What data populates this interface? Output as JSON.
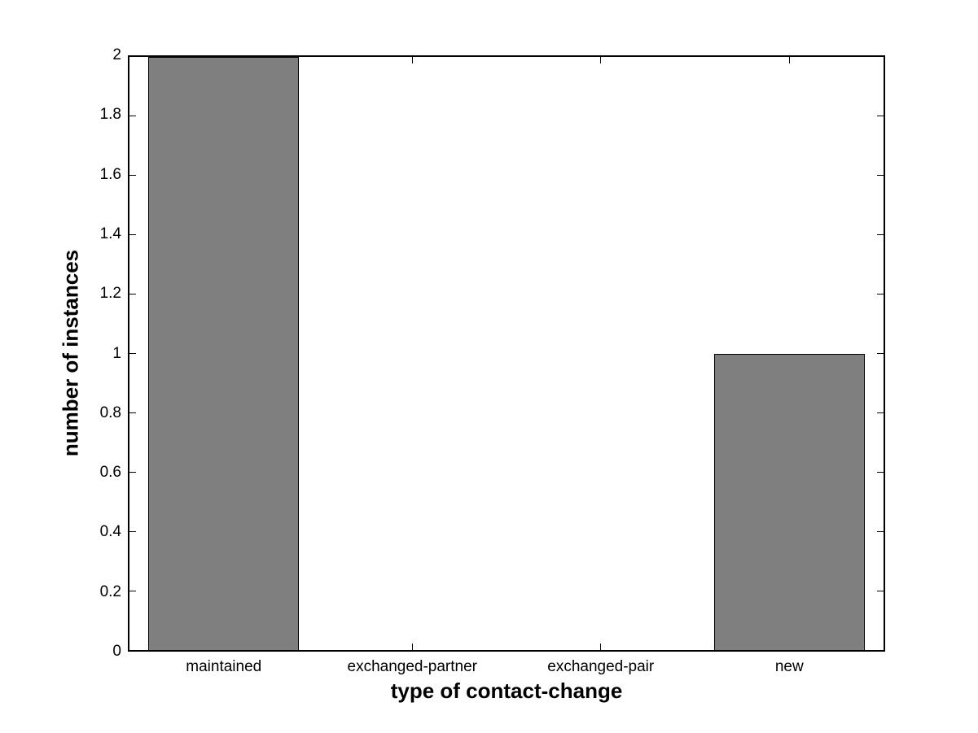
{
  "chart_data": {
    "type": "bar",
    "categories": [
      "maintained",
      "exchanged-partner",
      "exchanged-pair",
      "new"
    ],
    "values": [
      2,
      0,
      0,
      1
    ],
    "title": "",
    "xlabel": "type of contact-change",
    "ylabel": "number of instances",
    "ylim": [
      0,
      2
    ],
    "yticks": [
      "0",
      "0.2",
      "0.4",
      "0.6",
      "0.8",
      "1",
      "1.2",
      "1.4",
      "1.6",
      "1.8",
      "2"
    ],
    "bar_color": "#7f7f7f",
    "bar_edge_color": "#000000",
    "axis_color": "#000000",
    "background_color": "#ffffff",
    "bar_width_fraction": 0.8,
    "grid": "off",
    "legend": "none",
    "tick_direction": "in",
    "box": "on"
  }
}
